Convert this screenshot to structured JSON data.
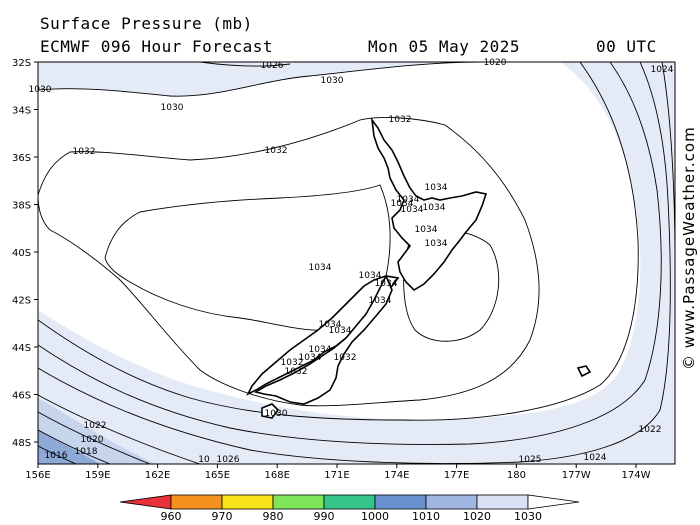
{
  "header": {
    "title": "Surface Pressure (mb)",
    "model": "ECMWF 096 Hour Forecast",
    "date": "Mon 05 May 2025",
    "time": "00 UTC"
  },
  "credit": "© www.PassageWeather.com",
  "axes": {
    "lat_ticks": [
      "32S",
      "34S",
      "36S",
      "38S",
      "40S",
      "42S",
      "44S",
      "46S",
      "48S"
    ],
    "lon_ticks": [
      "156E",
      "159E",
      "162E",
      "165E",
      "168E",
      "171E",
      "174E",
      "177E",
      "180",
      "177W",
      "174W"
    ]
  },
  "colorbar": {
    "labels": [
      "960",
      "970",
      "980",
      "990",
      "1000",
      "1010",
      "1020",
      "1030"
    ],
    "colors": [
      "#e8323a",
      "#f5921e",
      "#f7e316",
      "#7fe55a",
      "#35c48a",
      "#6a8fcf",
      "#9fb6e0",
      "#d8e2f4",
      "#ffffff"
    ]
  },
  "contour_labels": [
    "1026",
    "1030",
    "1030",
    "1020",
    "1024",
    "1030",
    "1032",
    "1032",
    "1032",
    "1034",
    "1034",
    "1034",
    "1034",
    "1034",
    "1034",
    "1034",
    "1034",
    "1034",
    "1034",
    "1034",
    "1034",
    "1034",
    "1034",
    "1034",
    "1032",
    "1032",
    "1032",
    "1030",
    "1026",
    "1025",
    "1024",
    "1022",
    "1022",
    "1020",
    "1018",
    "1016",
    "10"
  ],
  "colors": {
    "high_fill": "#ffffff",
    "mid_fill": "#e4ebf6",
    "low_fill": "#c6d4ec",
    "deep_fill": "#8fa9d6",
    "land_line": "#000000"
  }
}
